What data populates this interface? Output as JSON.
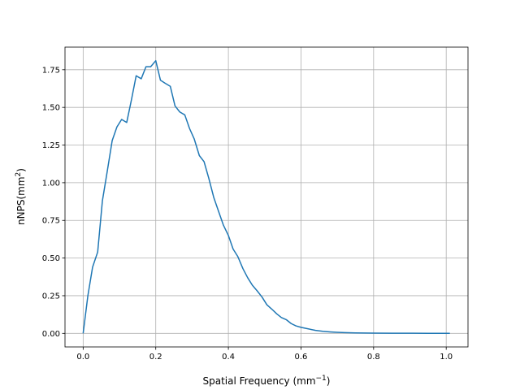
{
  "chart_data": {
    "type": "line",
    "title": "",
    "xlabel": {
      "main": "Spatial Frequency (mm",
      "sup": "−1",
      "tail": ")"
    },
    "ylabel": {
      "main": "nNPS(mm",
      "sup": "2",
      "tail": ")"
    },
    "xlim": [
      -0.05,
      1.06
    ],
    "ylim": [
      -0.09,
      1.9
    ],
    "xticks": [
      0.0,
      0.2,
      0.4,
      0.6,
      0.8,
      1.0
    ],
    "xtick_labels": [
      "0.0",
      "0.2",
      "0.4",
      "0.6",
      "0.8",
      "1.0"
    ],
    "yticks": [
      0.0,
      0.25,
      0.5,
      0.75,
      1.0,
      1.25,
      1.5,
      1.75
    ],
    "ytick_labels": [
      "0.00",
      "0.25",
      "0.50",
      "0.75",
      "1.00",
      "1.25",
      "1.50",
      "1.75"
    ],
    "grid": true,
    "colors": {
      "line": "#1f77b4",
      "grid": "#b0b0b0",
      "axes": "#000000"
    },
    "series": [
      {
        "x": [
          0.0,
          0.013,
          0.026,
          0.04,
          0.053,
          0.066,
          0.08,
          0.093,
          0.106,
          0.12,
          0.133,
          0.146,
          0.16,
          0.173,
          0.186,
          0.2,
          0.213,
          0.226,
          0.24,
          0.253,
          0.266,
          0.28,
          0.293,
          0.306,
          0.32,
          0.333,
          0.346,
          0.36,
          0.373,
          0.386,
          0.4,
          0.413,
          0.426,
          0.44,
          0.453,
          0.466,
          0.48,
          0.493,
          0.506,
          0.52,
          0.533,
          0.546,
          0.56,
          0.573,
          0.586,
          0.6,
          0.62,
          0.64,
          0.66,
          0.68,
          0.7,
          0.72,
          0.75,
          0.8,
          0.85,
          0.9,
          0.95,
          1.01
        ],
        "y": [
          0.0,
          0.25,
          0.44,
          0.54,
          0.88,
          1.07,
          1.28,
          1.37,
          1.42,
          1.4,
          1.55,
          1.71,
          1.69,
          1.77,
          1.77,
          1.81,
          1.68,
          1.66,
          1.64,
          1.51,
          1.47,
          1.45,
          1.36,
          1.29,
          1.18,
          1.14,
          1.03,
          0.9,
          0.81,
          0.72,
          0.65,
          0.56,
          0.51,
          0.43,
          0.37,
          0.32,
          0.28,
          0.24,
          0.19,
          0.16,
          0.13,
          0.105,
          0.09,
          0.065,
          0.05,
          0.04,
          0.03,
          0.02,
          0.014,
          0.01,
          0.007,
          0.005,
          0.003,
          0.002,
          0.001,
          0.001,
          0.0,
          0.0
        ]
      }
    ]
  }
}
